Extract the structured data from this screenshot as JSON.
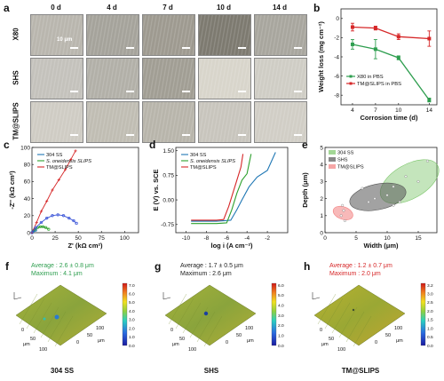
{
  "panel_a": {
    "letter": "a",
    "columns": [
      "0 d",
      "4 d",
      "7 d",
      "10 d",
      "14 d"
    ],
    "rows": [
      "X80",
      "SHS",
      "TM@SLIPS"
    ],
    "scale_label": "10 μm"
  },
  "panel_b": {
    "letter": "b",
    "chart_data": {
      "type": "line",
      "ylabel": "Weight loss (mg cm⁻²)",
      "xlabel": "Corrosion time (d)",
      "x": [
        4,
        7,
        10,
        14
      ],
      "xticks": [
        "4",
        "7",
        "10",
        "14"
      ],
      "ylim": [
        -9,
        1
      ],
      "yticks": [
        "0",
        "-2",
        "-4",
        "-6",
        "-8"
      ],
      "series": [
        {
          "name": "X80 in PBS",
          "color": "#2e9e4f",
          "values": [
            -2.7,
            -3.2,
            -4.1,
            -8.5
          ],
          "err": [
            0.5,
            1.0,
            0.2,
            0.2
          ]
        },
        {
          "name": "TM@SLIPS in PBS",
          "color": "#d62728",
          "values": [
            -0.9,
            -1.0,
            -1.9,
            -2.1
          ],
          "err": [
            0.4,
            0.2,
            0.3,
            0.8
          ]
        }
      ],
      "legend": "bottom-left"
    }
  },
  "panel_c": {
    "letter": "c",
    "chart_data": {
      "type": "scatter",
      "ylabel": "-Z'' (kΩ cm²)",
      "xlabel": "Z' (kΩ cm²)",
      "xlim": [
        0,
        115
      ],
      "ylim": [
        0,
        100
      ],
      "xticks": [
        "0",
        "25",
        "50",
        "75",
        "100"
      ],
      "yticks": [
        "0",
        "20",
        "40",
        "60",
        "80",
        "100"
      ],
      "series": [
        {
          "name": "304 SS",
          "color": "#1f77b4",
          "values": [
            [
              0,
              0
            ],
            [
              1,
              1.5
            ],
            [
              2,
              2.5
            ],
            [
              3,
              3
            ],
            [
              4,
              3
            ]
          ]
        },
        {
          "name": "S. oneidensis SLIPS",
          "color": "#2ca02c",
          "values": [
            [
              0,
              0
            ],
            [
              3,
              4
            ],
            [
              6,
              6
            ],
            [
              9,
              7
            ],
            [
              12,
              7
            ],
            [
              15,
              6
            ],
            [
              18,
              4
            ]
          ]
        },
        {
          "name": "TM@SLIPS",
          "color": "#d62728",
          "values": [
            [
              0,
              0
            ],
            [
              5,
              12
            ],
            [
              10,
              25
            ],
            [
              16,
              37
            ],
            [
              22,
              50
            ],
            [
              29,
              62
            ],
            [
              36,
              74
            ],
            [
              42,
              86
            ],
            [
              47,
              96
            ]
          ]
        },
        {
          "name": "",
          "color": "#3b55d8",
          "values": [
            [
              0,
              0
            ],
            [
              4,
              6
            ],
            [
              10,
              12
            ],
            [
              16,
              17
            ],
            [
              22,
              20
            ],
            [
              28,
              21
            ],
            [
              34,
              20
            ],
            [
              40,
              17
            ],
            [
              45,
              14
            ],
            [
              48,
              11
            ]
          ]
        }
      ],
      "legend": "top-left"
    }
  },
  "panel_d": {
    "letter": "d",
    "chart_data": {
      "type": "line",
      "ylabel": "E (V) vs. SCE",
      "xlabel": "log i (A cm⁻²)",
      "xlim": [
        -11,
        0
      ],
      "ylim": [
        -1.0,
        1.6
      ],
      "xticks": [
        "-10",
        "-8",
        "-6",
        "-4",
        "-2"
      ],
      "yticks": [
        "-0.75",
        "0.00",
        "0.75",
        "1.50"
      ],
      "series": [
        {
          "name": "304 SS",
          "color": "#1f77b4",
          "values": [
            [
              -9.5,
              -0.65
            ],
            [
              -7,
              -0.65
            ],
            [
              -5.6,
              -0.62
            ],
            [
              -5,
              -0.3
            ],
            [
              -4.5,
              0.0
            ],
            [
              -3.8,
              0.4
            ],
            [
              -3.0,
              0.7
            ],
            [
              -2.0,
              0.9
            ],
            [
              -1.2,
              1.45
            ]
          ]
        },
        {
          "name": "S. oneidensis SLIPS",
          "color": "#2ca02c",
          "values": [
            [
              -9.5,
              -0.72
            ],
            [
              -7,
              -0.72
            ],
            [
              -6.0,
              -0.7
            ],
            [
              -5.5,
              -0.3
            ],
            [
              -5.0,
              0.2
            ],
            [
              -4.5,
              0.6
            ],
            [
              -4.0,
              0.8
            ],
            [
              -3.6,
              1.4
            ]
          ]
        },
        {
          "name": "TM@SLIPS",
          "color": "#d62728",
          "values": [
            [
              -9.5,
              -0.62
            ],
            [
              -7,
              -0.62
            ],
            [
              -6.3,
              -0.6
            ],
            [
              -5.8,
              -0.2
            ],
            [
              -5.4,
              0.2
            ],
            [
              -5.0,
              0.6
            ],
            [
              -4.6,
              1.0
            ],
            [
              -4.4,
              1.4
            ]
          ]
        }
      ],
      "legend": "top-left"
    }
  },
  "panel_e": {
    "letter": "e",
    "chart_data": {
      "type": "scatter",
      "ylabel": "Depth (μm)",
      "xlabel": "Width  (μm)",
      "xlim": [
        0,
        18
      ],
      "ylim": [
        0,
        5
      ],
      "xticks": [
        "0",
        "5",
        "10",
        "15"
      ],
      "yticks": [
        "0",
        "1",
        "2",
        "3",
        "4",
        "5"
      ],
      "series": [
        {
          "name": "304 SS",
          "color": "#7cc66a",
          "values": [
            [
              11,
              2.7
            ],
            [
              13,
              3.3
            ],
            [
              15,
              3.0
            ],
            [
              16.5,
              4.2
            ],
            [
              12,
              1.8
            ]
          ]
        },
        {
          "name": "SHS",
          "color": "#555555",
          "values": [
            [
              6,
              2.6
            ],
            [
              8,
              2.0
            ],
            [
              10,
              2.2
            ],
            [
              11,
              1.6
            ],
            [
              7,
              1.8
            ]
          ]
        },
        {
          "name": "TM@SLIPS",
          "color": "#f28080",
          "values": [
            [
              2.6,
              1.0
            ],
            [
              3.0,
              1.3
            ],
            [
              3.2,
              0.7
            ],
            [
              2.8,
              1.6
            ]
          ]
        }
      ],
      "legend": "top-left"
    }
  },
  "afm": [
    {
      "letter": "f",
      "caption": "304 SS",
      "average": "Average : 2.6  ± 0.8 μm",
      "maximum": "Maximum : 4.1 μm",
      "color": "#2e9e4f",
      "scale_max": "7.0",
      "scale_ticks": [
        "7.0",
        "6.0",
        "5.0",
        "4.0",
        "3.0",
        "2.0",
        "1.0",
        "0.0"
      ]
    },
    {
      "letter": "g",
      "caption": "SHS",
      "average": "Average : 1.7 ± 0.5 μm",
      "maximum": "Maximum : 2.6 μm",
      "color": "#222222",
      "scale_max": "6.0",
      "scale_ticks": [
        "6.0",
        "5.0",
        "4.0",
        "3.0",
        "2.0",
        "1.0",
        "0.0"
      ]
    },
    {
      "letter": "h",
      "caption": "TM@SLIPS",
      "average": "Average : 1.2 ± 0.7 μm",
      "maximum": "Maximum : 2.0 μm",
      "color": "#d62728",
      "scale_max": "3.2",
      "scale_ticks": [
        "3.2",
        "3.0",
        "2.5",
        "2.0",
        "1.5",
        "1.0",
        "0.5",
        "0.0"
      ]
    }
  ],
  "afm_axis_ticks": [
    "0",
    "50",
    "100"
  ],
  "afm_axis_unit": "μm",
  "colors": {
    "x80_green": "#2e9e4f",
    "tm_red": "#d62728",
    "blue": "#1f77b4"
  }
}
